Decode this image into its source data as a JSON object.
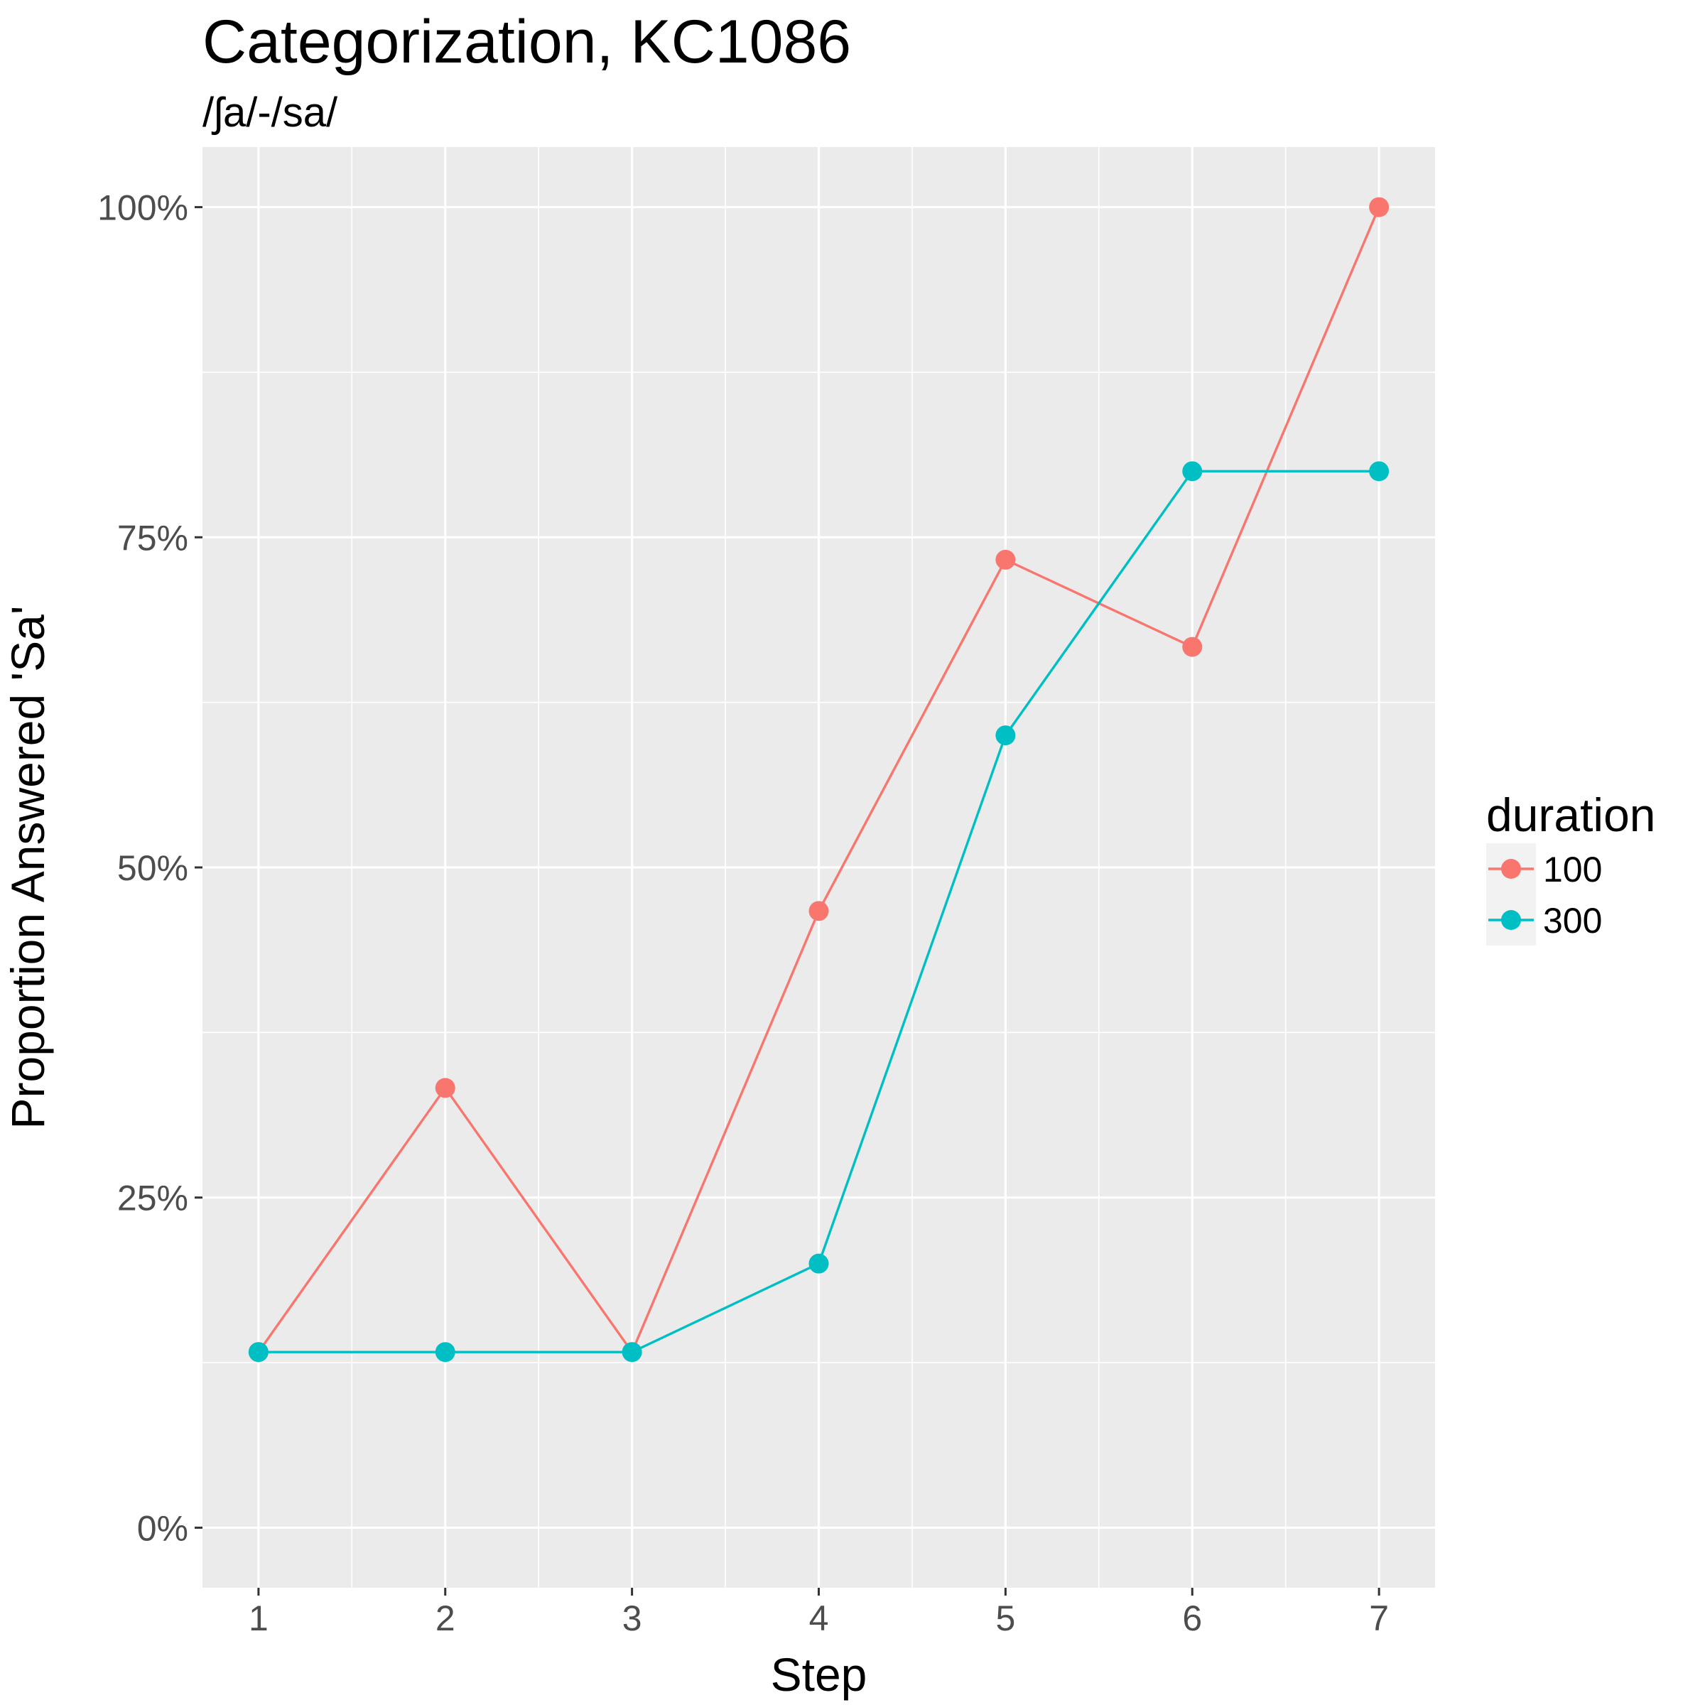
{
  "chart_data": {
    "type": "line",
    "title": "Categorization, KC1086",
    "subtitle": "/ʃa/-/sa/",
    "xlabel": "Step",
    "ylabel": "Proportion Answered 'Sa'",
    "x": [
      1,
      2,
      3,
      4,
      5,
      6,
      7
    ],
    "x_tick_labels": [
      "1",
      "2",
      "3",
      "4",
      "5",
      "6",
      "7"
    ],
    "xlim": [
      0.7,
      7.3
    ],
    "ylim": [
      -0.0455,
      1.0455
    ],
    "y_ticks": [
      0,
      0.25,
      0.5,
      0.75,
      1.0
    ],
    "y_tick_labels": [
      "0%",
      "25%",
      "50%",
      "75%",
      "100%"
    ],
    "grid": true,
    "panel_background": "#ebebeb",
    "legend": {
      "title": "duration",
      "placement": "right"
    },
    "series": [
      {
        "name": "100",
        "color": "#f8766d",
        "values": [
          0.133,
          0.333,
          0.133,
          0.467,
          0.733,
          0.667,
          1.0
        ]
      },
      {
        "name": "300",
        "color": "#00bfc4",
        "values": [
          0.133,
          0.133,
          0.133,
          0.2,
          0.6,
          0.8,
          0.8
        ]
      }
    ]
  }
}
